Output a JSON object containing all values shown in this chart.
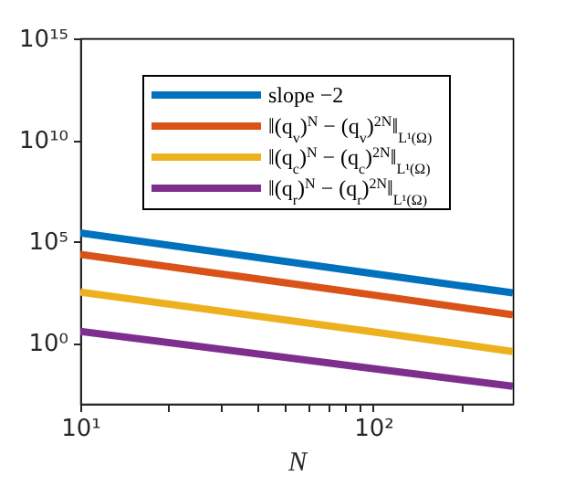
{
  "chart_data": {
    "type": "line",
    "xlabel": "N",
    "log": "xy",
    "xlim": [
      10,
      300
    ],
    "ylim": [
      0.001,
      1000000000000000.0
    ],
    "xticks": [
      {
        "value": 10,
        "label": "10¹"
      },
      {
        "value": 20,
        "label": null
      },
      {
        "value": 30,
        "label": null
      },
      {
        "value": 40,
        "label": null
      },
      {
        "value": 50,
        "label": null
      },
      {
        "value": 60,
        "label": null
      },
      {
        "value": 70,
        "label": null
      },
      {
        "value": 80,
        "label": null
      },
      {
        "value": 90,
        "label": null
      },
      {
        "value": 100,
        "label": "10²"
      },
      {
        "value": 200,
        "label": null
      }
    ],
    "yticks": [
      {
        "value": 1,
        "label": "10⁰"
      },
      {
        "value": 100000,
        "label": "10⁵"
      },
      {
        "value": 10000000000,
        "label": "10¹⁰"
      },
      {
        "value": 1000000000000000,
        "label": "10¹⁵"
      }
    ],
    "x": [
      10,
      100,
      300
    ],
    "series": [
      {
        "name": "slope −2",
        "color": "#0072bd",
        "values": [
          260000,
          2600,
          290
        ]
      },
      {
        "name": "‖(q$_{v}$)$^{N}$ − (q$_{v}$)$^{2N}$‖$_{L¹(Ω)}$",
        "color": "#d95319",
        "values": [
          23000,
          230,
          24
        ]
      },
      {
        "name": "‖(q$_{c}$)$^{N}$ − (q$_{c}$)$^{2N}$‖$_{L¹(Ω)}$",
        "color": "#edb120",
        "values": [
          320,
          3.5,
          0.38
        ]
      },
      {
        "name": "‖(q$_{r}$)$^{N}$ − (q$_{r}$)$^{2N}$‖$_{L¹(Ω)}$",
        "color": "#7e2f8e",
        "values": [
          3.7,
          0.054,
          0.0074
        ]
      }
    ],
    "legend": "top",
    "grid": false
  }
}
